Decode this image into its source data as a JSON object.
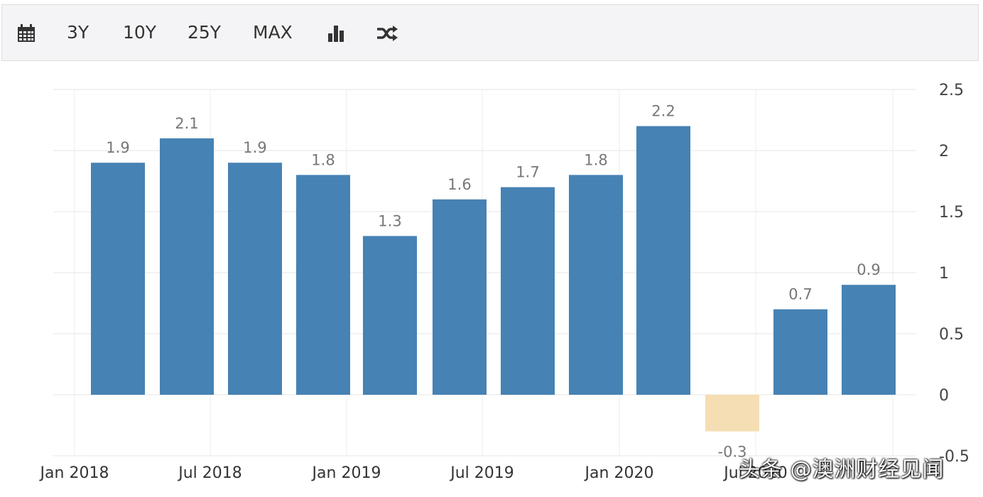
{
  "toolbar": {
    "items": [
      {
        "icon": "calendar-icon"
      },
      {
        "label": "3Y"
      },
      {
        "label": "10Y"
      },
      {
        "label": "25Y"
      },
      {
        "label": "MAX"
      },
      {
        "icon": "bar-chart-icon"
      },
      {
        "icon": "shuffle-icon"
      }
    ]
  },
  "chart_data": {
    "type": "bar",
    "categories": [
      "Q1 2018",
      "Q2 2018",
      "Q3 2018",
      "Q4 2018",
      "Q1 2019",
      "Q2 2019",
      "Q3 2019",
      "Q4 2019",
      "Q1 2020",
      "Q2 2020",
      "Q3 2020",
      "Q4 2020"
    ],
    "values": [
      1.9,
      2.1,
      1.9,
      1.8,
      1.3,
      1.6,
      1.7,
      1.8,
      2.2,
      -0.3,
      0.7,
      0.9
    ],
    "data_labels": [
      "1.9",
      "2.1",
      "1.9",
      "1.8",
      "1.3",
      "1.6",
      "1.7",
      "1.8",
      "2.2",
      "-0.3",
      "0.7",
      "0.9"
    ],
    "x_tick_labels": [
      "Jan 2018",
      "Jul 2018",
      "Jan 2019",
      "Jul 2019",
      "Jan 2020",
      "Jul 2020"
    ],
    "y_tick_labels": [
      "-0.5",
      "0",
      "0.5",
      "1",
      "1.5",
      "2",
      "2.5"
    ],
    "y_ticks": [
      -0.5,
      0,
      0.5,
      1,
      1.5,
      2,
      2.5
    ],
    "ylim": [
      -0.5,
      2.5
    ],
    "y_axis_side": "right",
    "grid": true,
    "colors": {
      "positive": "#4682b4",
      "negative": "#f5deb3"
    },
    "title": "",
    "xlabel": "",
    "ylabel": ""
  },
  "watermark": "头条 @澳洲财经见闻"
}
